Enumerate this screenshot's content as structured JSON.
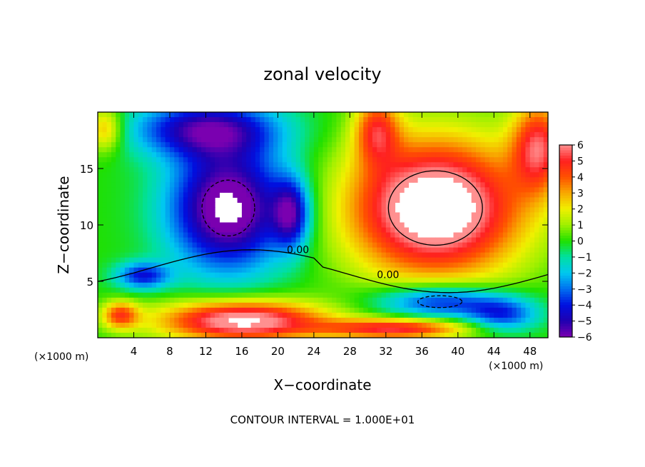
{
  "chart_data": {
    "type": "heatmap",
    "title": "zonal velocity",
    "xlabel": "X−coordinate",
    "ylabel": "Z−coordinate",
    "x_unit_left": "(×1000 m)",
    "x_unit_right": "(×1000 m)",
    "footer": "CONTOUR INTERVAL = 1.000E+01",
    "xlim": [
      0,
      50
    ],
    "ylim": [
      0,
      20
    ],
    "x_ticks": [
      4,
      8,
      12,
      16,
      20,
      24,
      28,
      32,
      36,
      40,
      44,
      48
    ],
    "y_ticks": [
      5,
      10,
      15
    ],
    "colorbar": {
      "min": -6,
      "max": 6,
      "ticks": [
        6,
        5,
        4,
        3,
        2,
        1,
        0,
        -1,
        -2,
        -3,
        -4,
        -5,
        -6
      ],
      "tick_labels": [
        "6",
        "5",
        "4",
        "3",
        "2",
        "1",
        "0",
        "−1",
        "−2",
        "−3",
        "−4",
        "−5",
        "−6"
      ],
      "stops": [
        {
          "v": -6,
          "c": "#7a00b0"
        },
        {
          "v": -5,
          "c": "#2000b0"
        },
        {
          "v": -4,
          "c": "#0010e0"
        },
        {
          "v": -3,
          "c": "#0070f0"
        },
        {
          "v": -2,
          "c": "#00c8f0"
        },
        {
          "v": -1,
          "c": "#00e0a0"
        },
        {
          "v": 0,
          "c": "#20e000"
        },
        {
          "v": 1,
          "c": "#a0f000"
        },
        {
          "v": 2,
          "c": "#f0f000"
        },
        {
          "v": 3,
          "c": "#f8a800"
        },
        {
          "v": 4,
          "c": "#ff5000"
        },
        {
          "v": 5,
          "c": "#ff2020"
        },
        {
          "v": 6,
          "c": "#ff9090"
        }
      ]
    },
    "contour_labels": [
      {
        "x": 21,
        "z": 7.5,
        "text": "0.00"
      },
      {
        "x": 31,
        "z": 5.3,
        "text": "0.00"
      }
    ],
    "features": [
      {
        "kind": "neg",
        "x": 14.5,
        "z": 11.5,
        "rx": 6.5,
        "rz": 5.5,
        "amp": -7
      },
      {
        "kind": "neg",
        "x": 12,
        "z": 18.5,
        "rx": 8,
        "rz": 2.5,
        "amp": -5
      },
      {
        "kind": "neg",
        "x": 21.5,
        "z": 11,
        "rx": 2,
        "rz": 3,
        "amp": -4.5
      },
      {
        "kind": "neg",
        "x": 5,
        "z": 5.5,
        "rx": 3,
        "rz": 1.2,
        "amp": -4
      },
      {
        "kind": "neg",
        "x": 38,
        "z": 3.2,
        "rx": 7,
        "rz": 1.5,
        "amp": -4.5
      },
      {
        "kind": "neg",
        "x": 45,
        "z": 2.0,
        "rx": 4,
        "rz": 1.5,
        "amp": -3.5
      },
      {
        "kind": "pos",
        "x": 37.5,
        "z": 11.5,
        "rx": 9.5,
        "rz": 6,
        "amp": 8
      },
      {
        "kind": "pos",
        "x": 49,
        "z": 17,
        "rx": 3,
        "rz": 4,
        "amp": 5
      },
      {
        "kind": "pos",
        "x": 0.8,
        "z": 18.5,
        "rx": 2,
        "rz": 2,
        "amp": 3
      },
      {
        "kind": "pos",
        "x": 16,
        "z": 1.5,
        "rx": 9,
        "rz": 1.8,
        "amp": 7
      },
      {
        "kind": "pos",
        "x": 33,
        "z": 0.8,
        "rx": 8,
        "rz": 0.9,
        "amp": 5
      },
      {
        "kind": "pos",
        "x": 2.5,
        "z": 2.0,
        "rx": 2,
        "rz": 1.2,
        "amp": 4
      },
      {
        "kind": "pos",
        "x": 31,
        "z": 18.5,
        "rx": 2.5,
        "rz": 3,
        "amp": 4
      }
    ]
  }
}
